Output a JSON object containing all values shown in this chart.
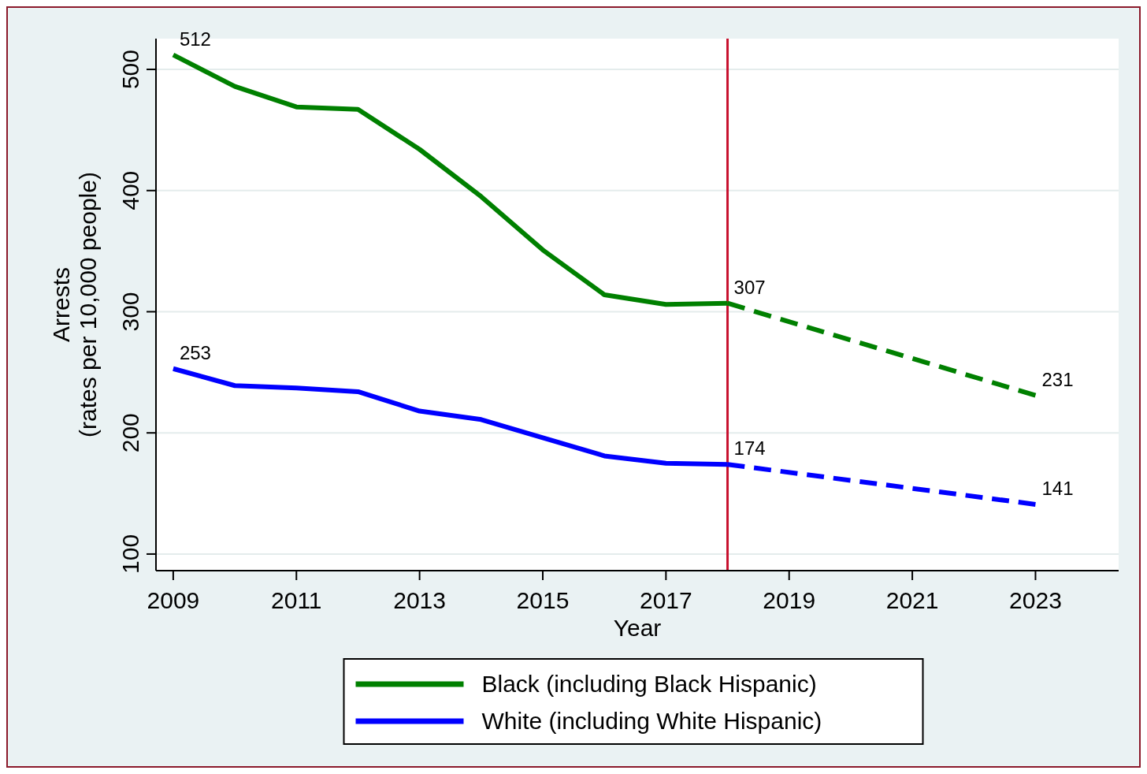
{
  "chart_data": {
    "type": "line",
    "xlabel": "Year",
    "ylabel": "Arrests\n(rates per 10,000 people)",
    "xlim": [
      2008.72,
      2024.35
    ],
    "xticks": [
      2009,
      2011,
      2013,
      2015,
      2017,
      2019,
      2021,
      2023
    ],
    "ylim": [
      86.3,
      525.4
    ],
    "yticks": [
      100,
      200,
      300,
      400,
      500
    ],
    "grid": "y",
    "legend": "bottom",
    "marker": "none",
    "series": [
      {
        "name": "Black (including Black Hispanic)",
        "color": "#008000",
        "line_style": "solid",
        "x": [
          2009,
          2010,
          2011,
          2012,
          2013,
          2014,
          2015,
          2016,
          2017,
          2018
        ],
        "values": [
          512,
          486,
          469,
          467,
          434,
          395,
          351,
          314,
          306,
          307
        ],
        "value_labels": [
          "512",
          null,
          null,
          null,
          null,
          null,
          null,
          null,
          null,
          "307"
        ]
      },
      {
        "name": "White (including White Hispanic)",
        "color": "#0000ff",
        "line_style": "solid",
        "x": [
          2009,
          2010,
          2011,
          2012,
          2013,
          2014,
          2015,
          2016,
          2017,
          2018
        ],
        "values": [
          253,
          239,
          237,
          234,
          218,
          211,
          196,
          181,
          175,
          174
        ],
        "value_labels": [
          "253",
          null,
          null,
          null,
          null,
          null,
          null,
          null,
          null,
          "174"
        ]
      },
      {
        "color": "#008000",
        "line_style": "dashed",
        "x": [
          2018,
          2023
        ],
        "values": [
          307,
          231
        ],
        "value_labels": [
          null,
          "231"
        ]
      },
      {
        "color": "#0000ff",
        "line_style": "dashed",
        "x": [
          2018,
          2023
        ],
        "values": [
          174,
          141
        ],
        "value_labels": [
          null,
          "141"
        ]
      }
    ],
    "ref_lines": [
      {
        "axis": "x",
        "value": 2018,
        "color": "#c8102e"
      }
    ]
  }
}
